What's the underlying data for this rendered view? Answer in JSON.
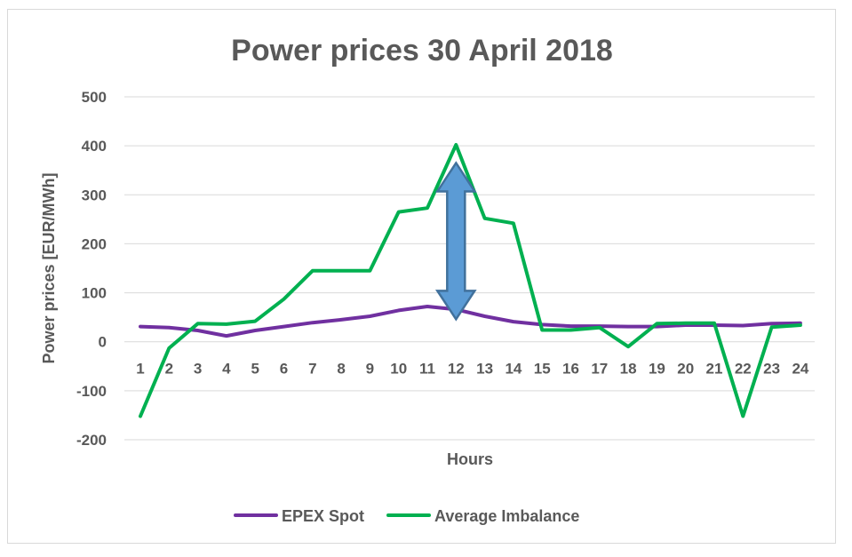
{
  "chart_data": {
    "type": "line",
    "title": "Power prices 30 April 2018",
    "xlabel": "Hours",
    "ylabel": "Power prices [EUR/MWh]",
    "ylim": [
      -200,
      500
    ],
    "yticks": [
      -200,
      -100,
      0,
      100,
      200,
      300,
      400,
      500
    ],
    "x": [
      1,
      2,
      3,
      4,
      5,
      6,
      7,
      8,
      9,
      10,
      11,
      12,
      13,
      14,
      15,
      16,
      17,
      18,
      19,
      20,
      21,
      22,
      23,
      24
    ],
    "grid": true,
    "legend_position": "bottom",
    "series": [
      {
        "name": "EPEX Spot",
        "color": "#7030a0",
        "values": [
          31,
          29,
          23,
          12,
          23,
          31,
          39,
          45,
          52,
          64,
          72,
          66,
          52,
          41,
          35,
          32,
          32,
          31,
          31,
          34,
          34,
          33,
          37,
          38
        ]
      },
      {
        "name": "Average Imbalance",
        "color": "#00b050",
        "values": [
          -152,
          -13,
          37,
          36,
          42,
          87,
          145,
          145,
          145,
          265,
          273,
          402,
          252,
          242,
          24,
          24,
          29,
          -10,
          37,
          38,
          38,
          -152,
          30,
          34
        ]
      }
    ],
    "annotations": [
      {
        "type": "double-arrow",
        "icon": "double-arrow-icon",
        "x": 12,
        "y_from": 66,
        "y_to": 345,
        "color": "#5b9bd5"
      }
    ]
  }
}
